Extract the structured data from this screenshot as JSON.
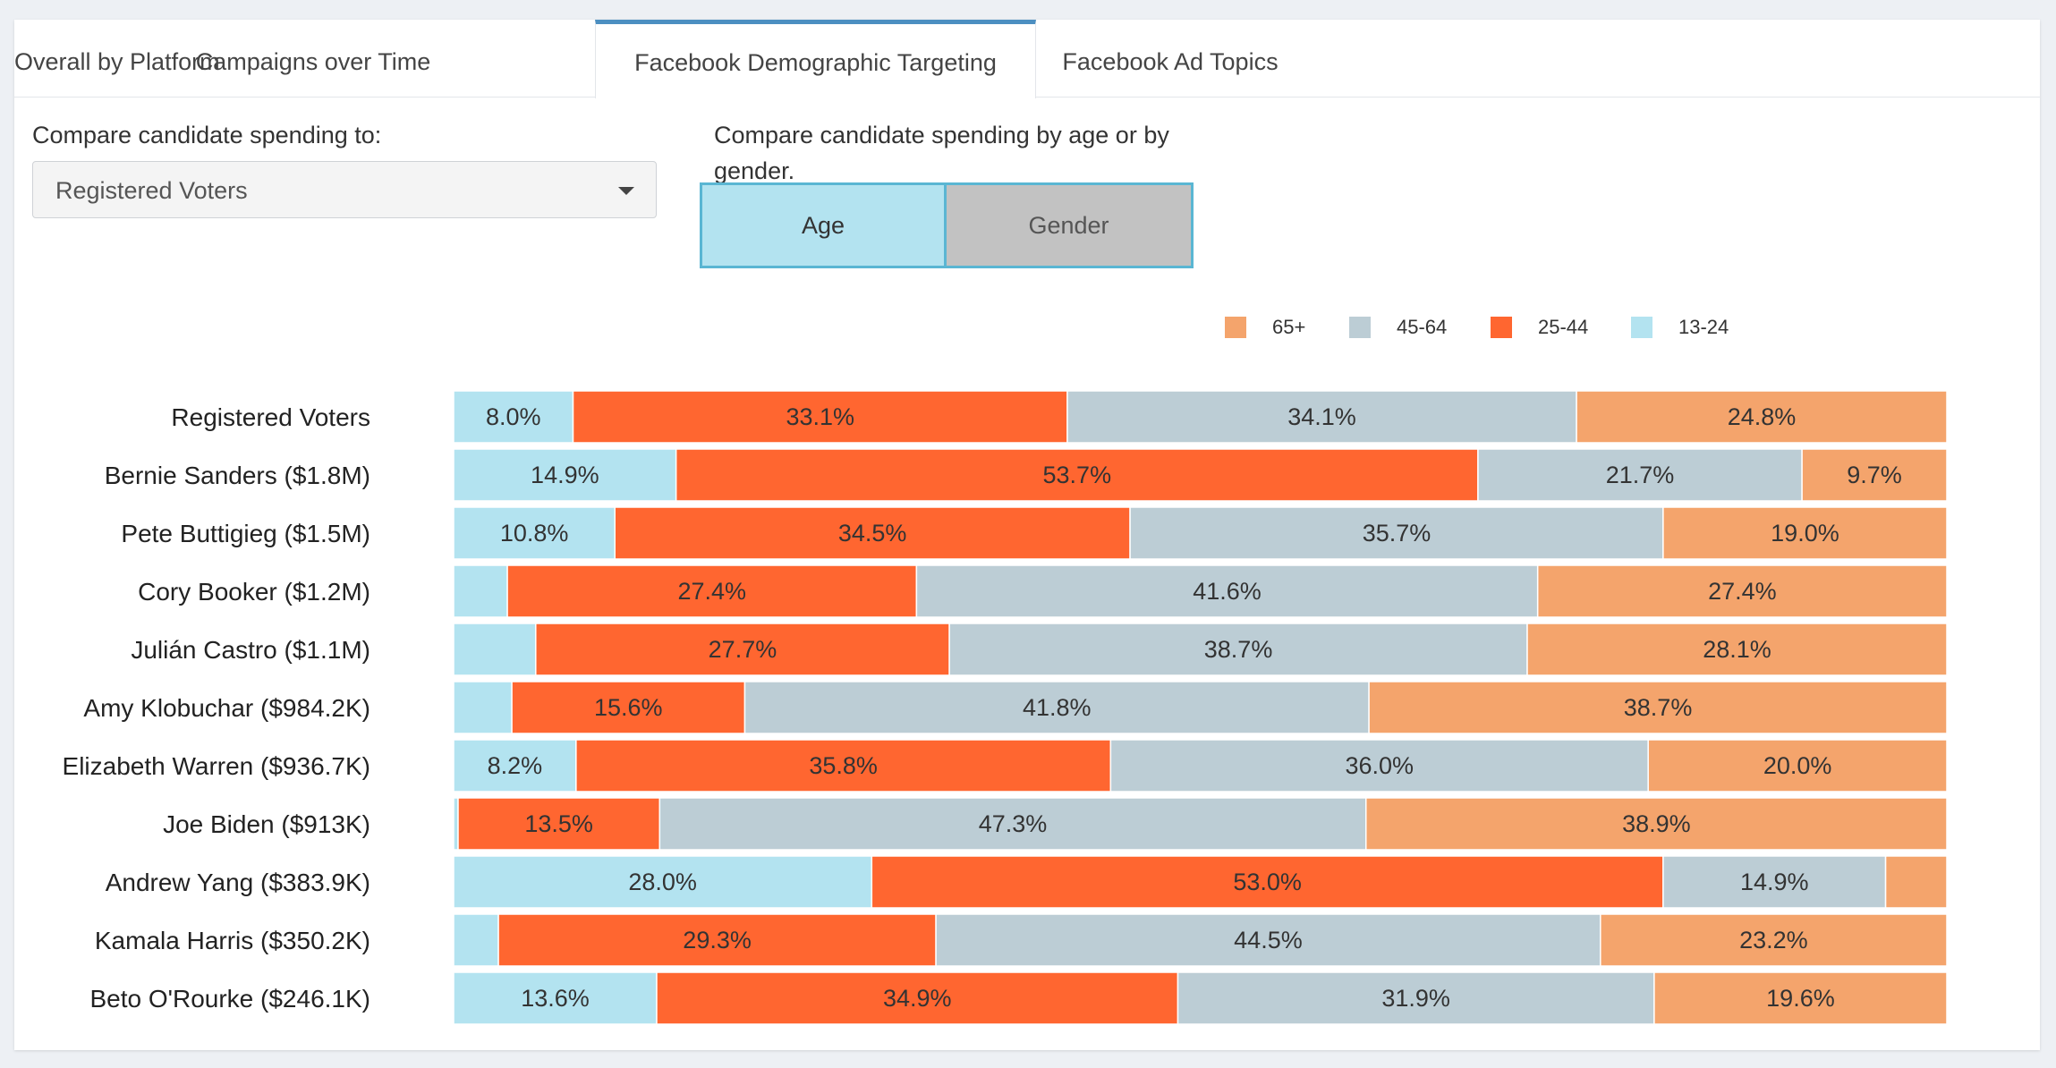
{
  "tabs": [
    {
      "label": "Overall by Platform"
    },
    {
      "label": "Campaigns over Time"
    },
    {
      "label": "Facebook Demographic Targeting"
    },
    {
      "label": "Facebook Ad Topics"
    }
  ],
  "controls": {
    "compare_label": "Compare candidate spending to:",
    "compare_value": "Registered Voters",
    "by_label_line1": "Compare candidate spending by age or by",
    "by_label_line2": "gender.",
    "age_button": "Age",
    "gender_button": "Gender"
  },
  "chart_data": {
    "type": "bar",
    "orientation": "horizontal",
    "stacked": true,
    "normalized_percent": true,
    "categories": [
      "Registered Voters",
      "Bernie Sanders ($1.8M)",
      "Pete Buttigieg ($1.5M)",
      "Cory Booker ($1.2M)",
      "Julián Castro ($1.1M)",
      "Amy Klobuchar ($984.2K)",
      "Elizabeth Warren ($936.7K)",
      "Joe Biden ($913K)",
      "Andrew Yang ($383.9K)",
      "Kamala Harris ($350.2K)",
      "Beto O'Rourke ($246.1K)"
    ],
    "series": [
      {
        "name": "13-24",
        "color": "#b3e3f0",
        "values": [
          8.0,
          14.9,
          10.8,
          3.6,
          5.5,
          3.9,
          8.2,
          0.3,
          28.0,
          3.0,
          13.6
        ]
      },
      {
        "name": "25-44",
        "color": "#ff6630",
        "values": [
          33.1,
          53.7,
          34.5,
          27.4,
          27.7,
          15.6,
          35.8,
          13.5,
          53.0,
          29.3,
          34.9
        ]
      },
      {
        "name": "45-64",
        "color": "#bccdd5",
        "values": [
          34.1,
          21.7,
          35.7,
          41.6,
          38.7,
          41.8,
          36.0,
          47.3,
          14.9,
          44.5,
          31.9
        ]
      },
      {
        "name": "65+",
        "color": "#f4a46c",
        "values": [
          24.8,
          9.7,
          19.0,
          27.4,
          28.1,
          38.7,
          20.0,
          38.9,
          4.1,
          23.2,
          19.6
        ]
      }
    ],
    "labels": [
      [
        "8.0%",
        "33.1%",
        "34.1%",
        "24.8%"
      ],
      [
        "14.9%",
        "53.7%",
        "21.7%",
        "9.7%"
      ],
      [
        "10.8%",
        "34.5%",
        "35.7%",
        "19.0%"
      ],
      [
        "",
        "27.4%",
        "41.6%",
        "27.4%"
      ],
      [
        "",
        "27.7%",
        "38.7%",
        "28.1%"
      ],
      [
        "",
        "15.6%",
        "41.8%",
        "38.7%"
      ],
      [
        "8.2%",
        "35.8%",
        "36.0%",
        "20.0%"
      ],
      [
        "",
        "13.5%",
        "47.3%",
        "38.9%"
      ],
      [
        "28.0%",
        "53.0%",
        "14.9%",
        ""
      ],
      [
        "",
        "29.3%",
        "44.5%",
        "23.2%"
      ],
      [
        "13.6%",
        "34.9%",
        "31.9%",
        "19.6%"
      ]
    ],
    "legend": {
      "position": "top-right",
      "order": [
        "65+",
        "45-64",
        "25-44",
        "13-24"
      ]
    },
    "xlim": [
      0,
      100
    ],
    "grid": false
  }
}
